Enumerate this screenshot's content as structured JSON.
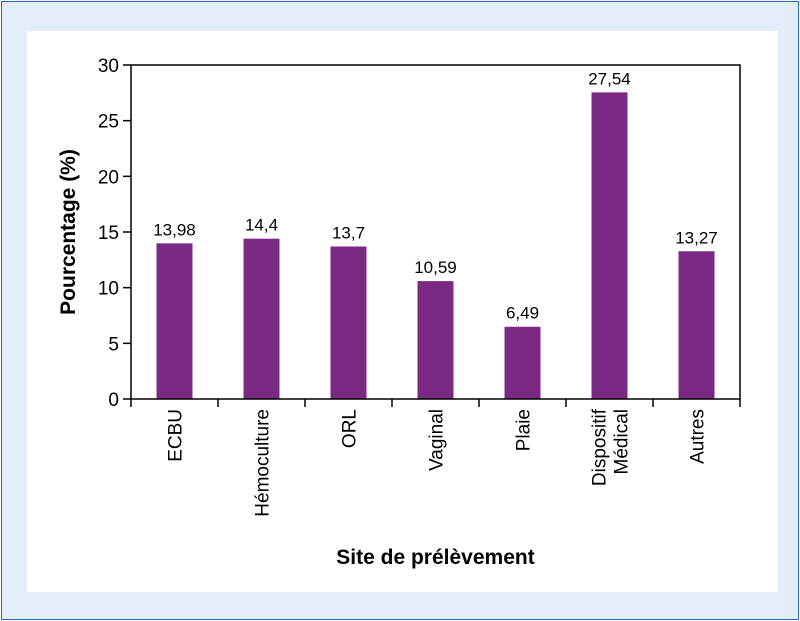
{
  "chart_data": {
    "type": "bar",
    "categories": [
      "ECBU",
      "Hémoculture",
      "ORL",
      "Vaginal",
      "Plaie",
      "Dispositif Médical",
      "Autres"
    ],
    "category_lines": [
      [
        "ECBU"
      ],
      [
        "Hémoculture"
      ],
      [
        "ORL"
      ],
      [
        "Vaginal"
      ],
      [
        "Plaie"
      ],
      [
        "Dispositif",
        "Médical"
      ],
      [
        "Autres"
      ]
    ],
    "values": [
      13.98,
      14.4,
      13.7,
      10.59,
      6.49,
      27.54,
      13.27
    ],
    "value_labels": [
      "13,98",
      "14,4",
      "13,7",
      "10,59",
      "6,49",
      "27,54",
      "13,27"
    ],
    "title": "",
    "xlabel": "Site de prélèvement",
    "ylabel": "Pourcentage (%)",
    "ylim": [
      0,
      30
    ],
    "yticks": [
      0,
      5,
      10,
      15,
      20,
      25,
      30
    ],
    "grid": false,
    "bar_color": "#7b2a84",
    "frame_color": "#2b6cb0",
    "background_color": "#e4eef8"
  }
}
